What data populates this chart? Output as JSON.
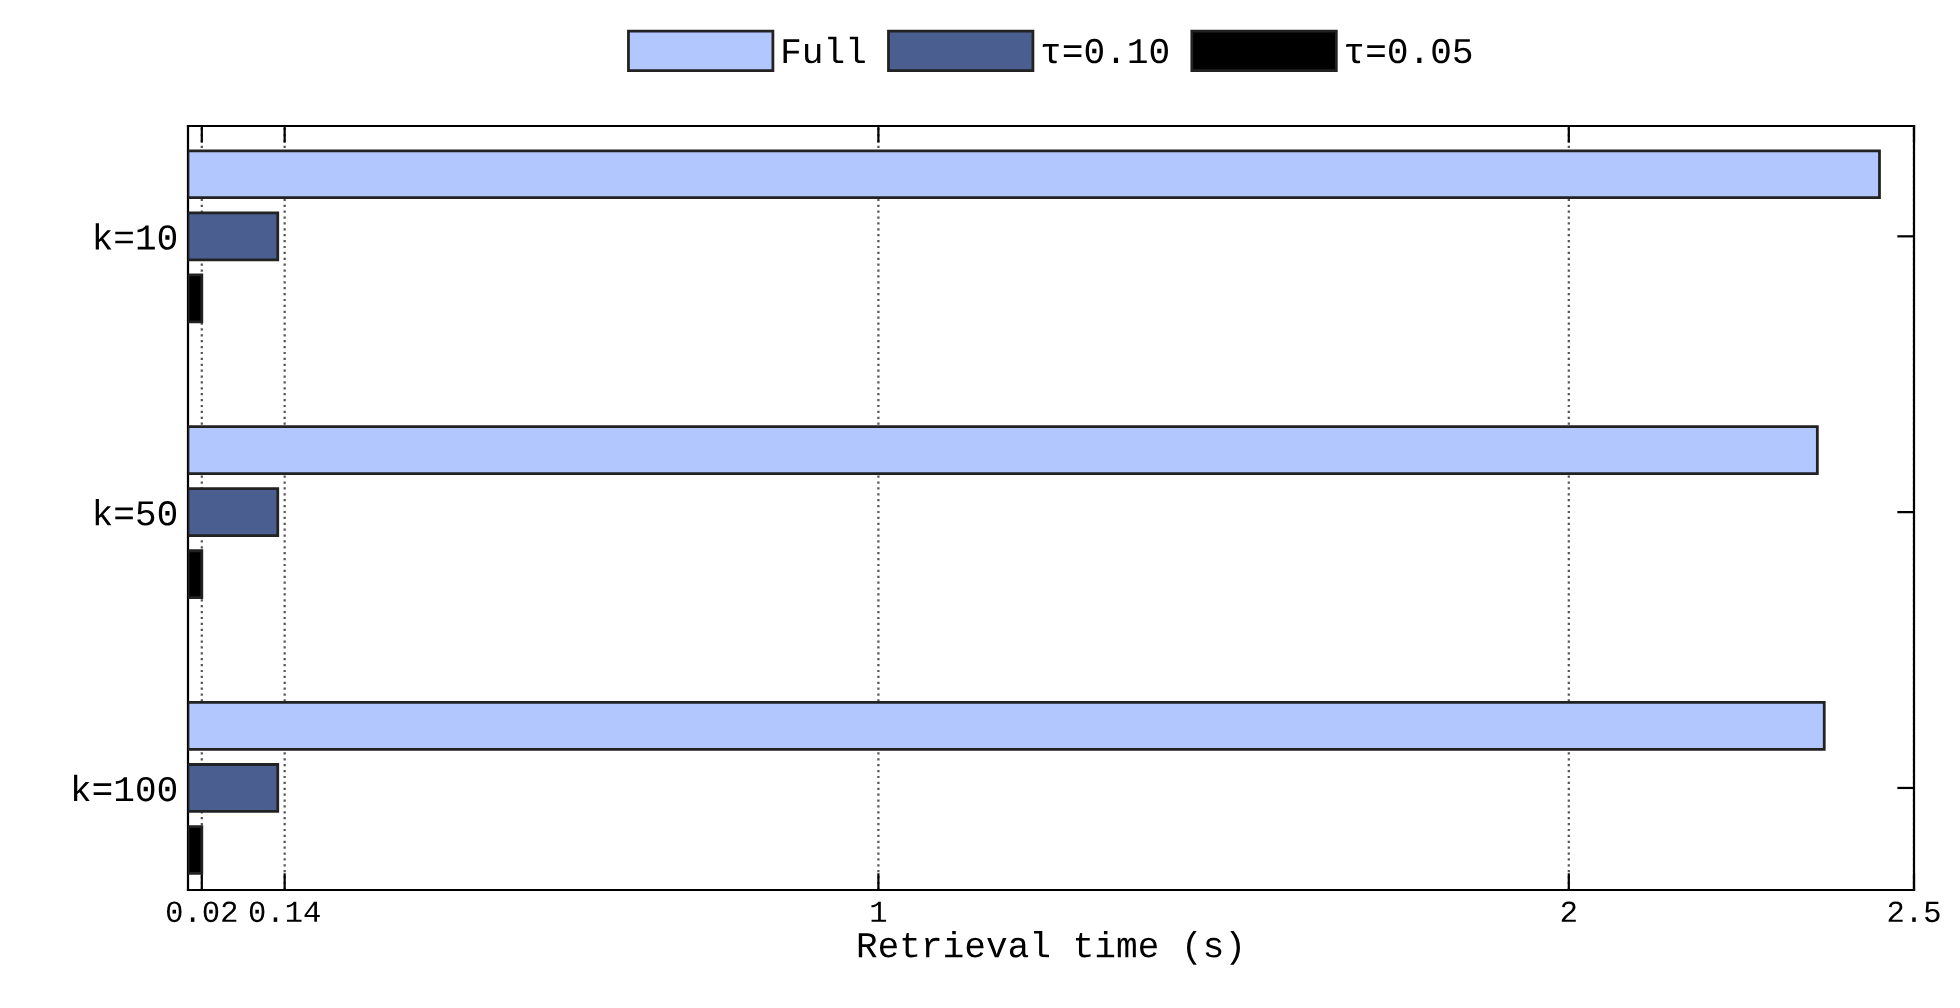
{
  "chart_data": {
    "type": "bar",
    "orientation": "horizontal",
    "xlabel": "Retrieval time (s)",
    "categories": [
      "k=10",
      "k=50",
      "k=100"
    ],
    "series": [
      {
        "name": "Full",
        "color": "#b3c7ff",
        "values": [
          2.45,
          2.36,
          2.37
        ]
      },
      {
        "name": "τ=0.10",
        "color": "#4a5f8f",
        "values": [
          0.13,
          0.13,
          0.13
        ]
      },
      {
        "name": "τ=0.05",
        "color": "#000000",
        "values": [
          0.02,
          0.02,
          0.02
        ]
      }
    ],
    "xlim": [
      0,
      2.5
    ],
    "xticks": [
      0.02,
      0.14,
      1,
      2,
      2.5
    ],
    "grid": "x",
    "legend": "top"
  }
}
